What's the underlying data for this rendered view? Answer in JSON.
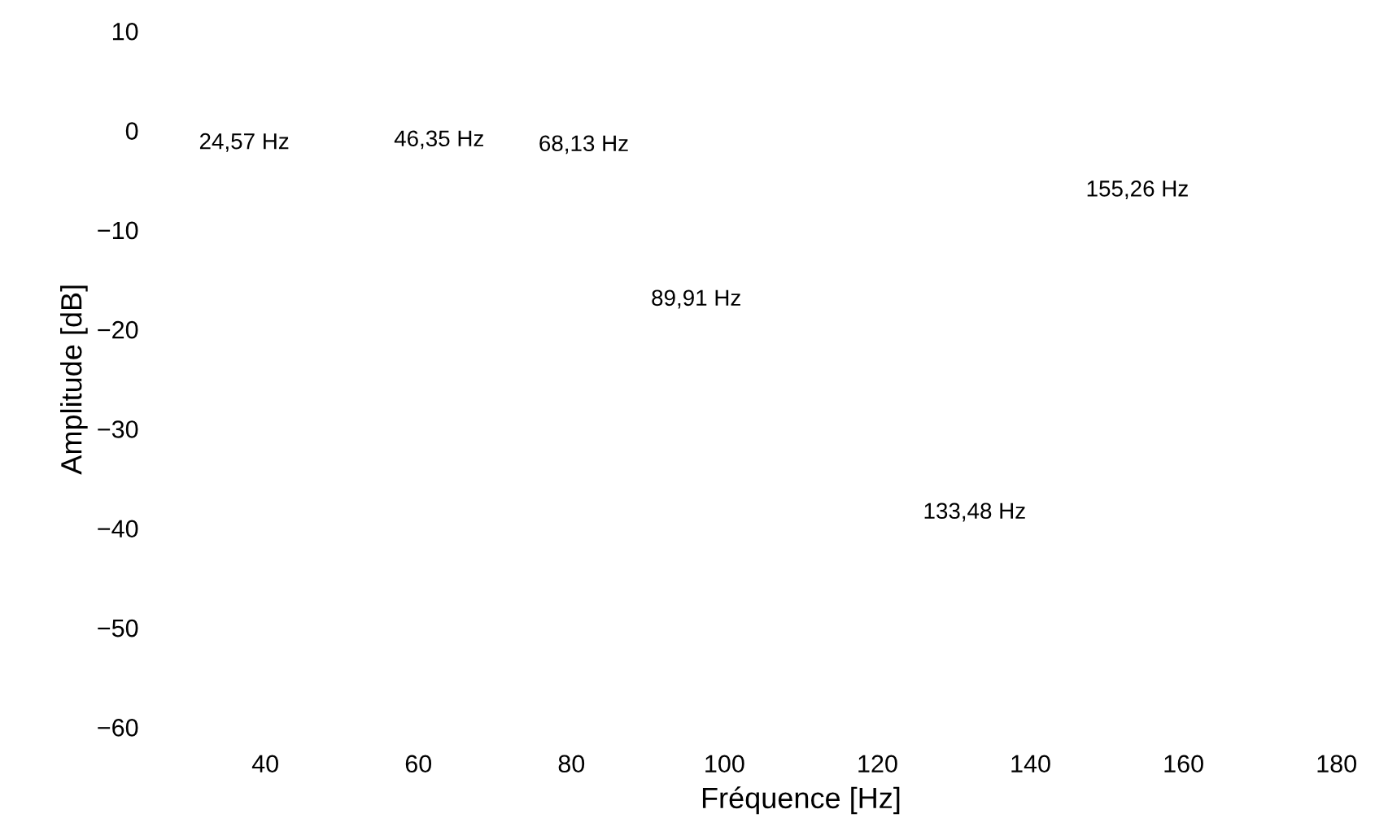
{
  "chart_data": {
    "type": "line",
    "xlabel": "Fréquence [Hz]",
    "ylabel": "Amplitude [dB]",
    "xlim": [
      40,
      180
    ],
    "ylim": [
      -60,
      10
    ],
    "xticks": [
      40,
      60,
      80,
      100,
      120,
      140,
      160,
      180
    ],
    "yticks": [
      {
        "value": -60,
        "label": "−60"
      },
      {
        "value": -50,
        "label": "−50"
      },
      {
        "value": -40,
        "label": "−40"
      },
      {
        "value": -30,
        "label": "−30"
      },
      {
        "value": -20,
        "label": "−20"
      },
      {
        "value": -10,
        "label": "−10"
      },
      0,
      10
    ],
    "annotations": [
      "24,57 Hz",
      "46,35 Hz",
      "68,13 Hz",
      "89,91 Hz",
      "133,48 Hz",
      "155,26 Hz"
    ]
  }
}
